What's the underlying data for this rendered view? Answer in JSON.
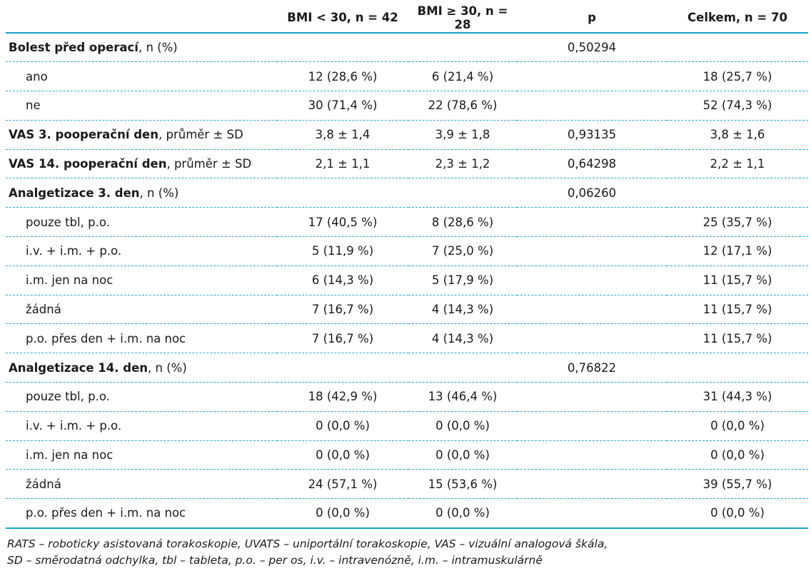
{
  "table": {
    "headers": [
      "",
      "BMI < 30, n = 42",
      "BMI ≥ 30, n = 28",
      "p",
      "Celkem, n = 70"
    ],
    "rows": [
      {
        "bold": "Bolest před operací",
        "rest": ", n (%)",
        "sub": false,
        "c1": "",
        "c2": "",
        "p": "0,50294",
        "c4": ""
      },
      {
        "bold": "",
        "rest": "ano",
        "sub": true,
        "c1": "12 (28,6 %)",
        "c2": "6 (21,4 %)",
        "p": "",
        "c4": "18 (25,7 %)"
      },
      {
        "bold": "",
        "rest": "ne",
        "sub": true,
        "c1": "30 (71,4 %)",
        "c2": "22 (78,6 %)",
        "p": "",
        "c4": "52 (74,3 %)"
      },
      {
        "bold": "VAS 3. pooperační den",
        "rest": ", průměr ± SD",
        "sub": false,
        "c1": "3,8 ± 1,4",
        "c2": "3,9 ± 1,8",
        "p": "0,93135",
        "c4": "3,8 ± 1,6"
      },
      {
        "bold": "VAS 14. pooperační den",
        "rest": ", průměr ± SD",
        "sub": false,
        "c1": "2,1 ± 1,1",
        "c2": "2,3 ± 1,2",
        "p": "0,64298",
        "c4": "2,2 ± 1,1"
      },
      {
        "bold": "Analgetizace 3. den",
        "rest": ", n (%)",
        "sub": false,
        "c1": "",
        "c2": "",
        "p": "0,06260",
        "c4": ""
      },
      {
        "bold": "",
        "rest": "pouze tbl, p.o.",
        "sub": true,
        "c1": "17 (40,5 %)",
        "c2": "8 (28,6 %)",
        "p": "",
        "c4": "25 (35,7 %)"
      },
      {
        "bold": "",
        "rest": "i.v. + i.m. + p.o.",
        "sub": true,
        "c1": "5 (11,9 %)",
        "c2": "7 (25,0 %)",
        "p": "",
        "c4": "12 (17,1 %)"
      },
      {
        "bold": "",
        "rest": "i.m. jen na noc",
        "sub": true,
        "c1": "6 (14,3 %)",
        "c2": "5 (17,9 %)",
        "p": "",
        "c4": "11 (15,7 %)"
      },
      {
        "bold": "",
        "rest": "žádná",
        "sub": true,
        "c1": "7 (16,7 %)",
        "c2": "4 (14,3 %)",
        "p": "",
        "c4": "11 (15,7 %)"
      },
      {
        "bold": "",
        "rest": "p.o. přes den + i.m. na noc",
        "sub": true,
        "c1": "7 (16,7 %)",
        "c2": "4 (14,3 %)",
        "p": "",
        "c4": "11 (15,7 %)"
      },
      {
        "bold": "Analgetizace 14. den",
        "rest": ", n (%)",
        "sub": false,
        "c1": "",
        "c2": "",
        "p": "0,76822",
        "c4": ""
      },
      {
        "bold": "",
        "rest": "pouze tbl, p.o.",
        "sub": true,
        "c1": "18 (42,9 %)",
        "c2": "13 (46,4 %)",
        "p": "",
        "c4": "31 (44,3 %)"
      },
      {
        "bold": "",
        "rest": "i.v. + i.m. + p.o.",
        "sub": true,
        "c1": "0 (0,0 %)",
        "c2": "0 (0,0 %)",
        "p": "",
        "c4": "0 (0,0 %)"
      },
      {
        "bold": "",
        "rest": "i.m. jen na noc",
        "sub": true,
        "c1": "0 (0,0 %)",
        "c2": "0 (0,0 %)",
        "p": "",
        "c4": "0 (0,0 %)"
      },
      {
        "bold": "",
        "rest": "žádná",
        "sub": true,
        "c1": "24 (57,1 %)",
        "c2": "15 (53,6 %)",
        "p": "",
        "c4": "39 (55,7 %)"
      },
      {
        "bold": "",
        "rest": "p.o. přes den + i.m. na noc",
        "sub": true,
        "c1": "0 (0,0 %)",
        "c2": "0 (0,0 %)",
        "p": "",
        "c4": "0 (0,0 %)"
      }
    ]
  },
  "footnote": {
    "line1": "RATS – roboticky asistovaná torakoskopie, UVATS – uniportální torakoskopie, VAS – vizuální analogová škála,",
    "line2": "SD – směrodatná odchylka, tbl – tableta, p.o. – per os, i.v. – intravenózně, i.m. – intramuskulárně"
  },
  "colors": {
    "rule": "#1aa0c6",
    "dashed": "#27a7cc",
    "text": "#1a1a1a"
  }
}
